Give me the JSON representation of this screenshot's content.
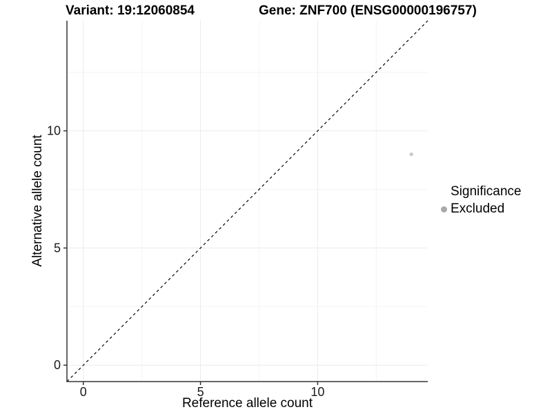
{
  "header": {
    "variant_title": "Variant: 19:12060854",
    "gene_title": "Gene: ZNF700 (ENSG00000196757)"
  },
  "chart_data": {
    "type": "scatter",
    "xlabel": "Reference allele count",
    "ylabel": "Alternative allele count",
    "xlim": [
      -0.7,
      14.7
    ],
    "ylim": [
      -0.7,
      14.7
    ],
    "x_ticks": [
      0,
      5,
      10
    ],
    "y_ticks": [
      0,
      5,
      10
    ],
    "minor_gridlines": [
      2.5,
      7.5,
      12.5
    ],
    "grid": true,
    "identity_line": {
      "type": "dashed",
      "equation": "y = x",
      "color": "#000000"
    },
    "series": [
      {
        "name": "Excluded",
        "color": "#c8c8c8",
        "points": [
          {
            "x": 14,
            "y": 9
          }
        ]
      }
    ],
    "legend": {
      "title": "Significance",
      "position": "right",
      "items": [
        {
          "label": "Excluded",
          "color": "#a9a9a9"
        }
      ]
    }
  },
  "colors": {
    "axis_line": "#333333",
    "grid_major": "#ebebeb",
    "grid_minor": "#f4f4f4",
    "text": "#1a1a1a",
    "background": "#ffffff"
  }
}
